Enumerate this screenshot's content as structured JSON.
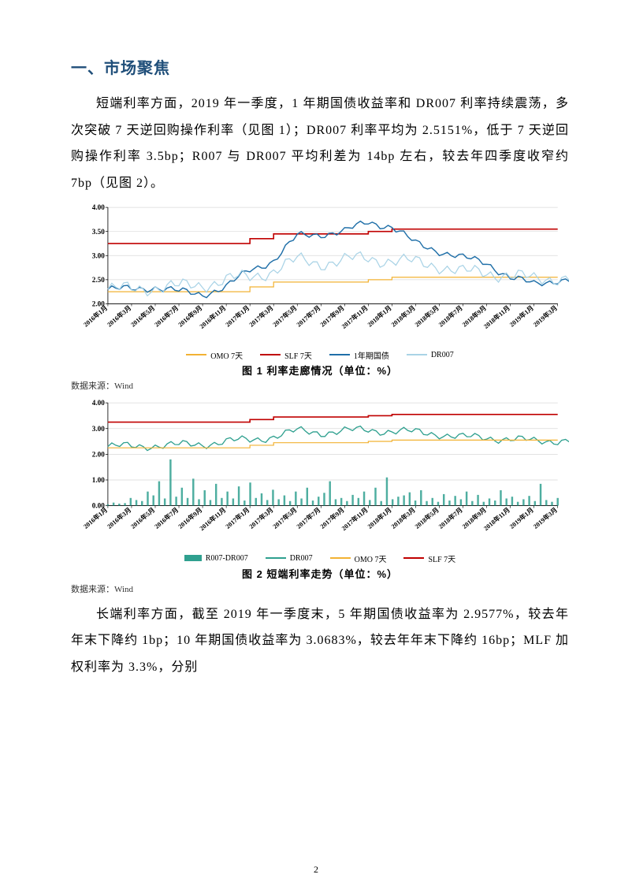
{
  "heading": "一、市场聚焦",
  "para1": "短端利率方面，2019 年一季度，1 年期国债收益率和 DR007 利率持续震荡，多次突破 7 天逆回购操作利率（见图 1）；DR007 利率平均为 2.5151%，低于 7 天逆回购操作利率 3.5bp；R007 与 DR007 平均利差为 14bp 左右，较去年四季度收窄约 7bp（见图 2）。",
  "para2": "长端利率方面，截至 2019 年一季度末，5 年期国债收益率为 2.9577%，较去年年末下降约 1bp；10 年期国债收益率为 3.0683%，较去年年末下降约 16bp；MLF 加权利率为 3.3%，分别",
  "source_label": "数据来源：Wind",
  "page_number": "2",
  "chart1": {
    "type": "line",
    "caption": "图 1 利率走廊情况（单位：%）",
    "ylim": [
      2.0,
      4.0
    ],
    "ytick_step": 0.5,
    "ytick_labels": [
      "2.00",
      "2.50",
      "3.00",
      "3.50",
      "4.00"
    ],
    "tick_fontsize": 9,
    "tick_color": "#000000",
    "background_color": "#ffffff",
    "grid_color": "#d9d9d9",
    "x_labels": [
      "2016年1月",
      "2016年3月",
      "2016年5月",
      "2016年7月",
      "2016年9月",
      "2016年11月",
      "2017年1月",
      "2017年3月",
      "2017年5月",
      "2017年7月",
      "2017年9月",
      "2017年11月",
      "2018年1月",
      "2018年3月",
      "2018年5月",
      "2018年7月",
      "2018年9月",
      "2018年11月",
      "2019年1月",
      "2019年3月"
    ],
    "series": [
      {
        "name": "OMO 7天",
        "color": "#f2b233",
        "width": 1.2,
        "values": [
          2.25,
          2.25,
          2.25,
          2.25,
          2.25,
          2.25,
          2.35,
          2.45,
          2.45,
          2.45,
          2.45,
          2.5,
          2.55,
          2.55,
          2.55,
          2.55,
          2.55,
          2.55,
          2.55,
          2.55
        ]
      },
      {
        "name": "SLF 7天",
        "color": "#c00000",
        "width": 1.6,
        "values": [
          3.25,
          3.25,
          3.25,
          3.25,
          3.25,
          3.25,
          3.35,
          3.45,
          3.45,
          3.45,
          3.45,
          3.5,
          3.55,
          3.55,
          3.55,
          3.55,
          3.55,
          3.55,
          3.55,
          3.55
        ]
      },
      {
        "name": "1年期国债",
        "color": "#1f6fa8",
        "width": 1.4,
        "values": [
          2.3,
          2.3,
          2.35,
          2.25,
          2.2,
          2.35,
          2.7,
          2.9,
          3.4,
          3.45,
          3.5,
          3.7,
          3.6,
          3.25,
          3.1,
          2.95,
          2.85,
          2.55,
          2.4,
          2.5
        ]
      },
      {
        "name": "DR007",
        "color": "#a9d3e6",
        "width": 1.2,
        "values": [
          2.3,
          2.3,
          2.35,
          2.35,
          2.4,
          2.5,
          2.55,
          2.7,
          2.9,
          2.85,
          2.9,
          2.95,
          2.9,
          2.85,
          2.8,
          2.65,
          2.65,
          2.6,
          2.5,
          2.55
        ]
      }
    ]
  },
  "chart2": {
    "type": "combo",
    "caption": "图 2 短端利率走势（单位：%）",
    "ylim": [
      0.0,
      4.0
    ],
    "ytick_step": 1.0,
    "ytick_labels": [
      "0.00",
      "1.00",
      "2.00",
      "3.00",
      "4.00"
    ],
    "tick_fontsize": 9,
    "tick_color": "#000000",
    "background_color": "#ffffff",
    "grid_color": "#d9d9d9",
    "x_labels": [
      "2016年1月",
      "2016年3月",
      "2016年5月",
      "2016年7月",
      "2016年9月",
      "2016年11月",
      "2017年1月",
      "2017年3月",
      "2017年5月",
      "2017年7月",
      "2017年9月",
      "2017年11月",
      "2018年1月",
      "2018年3月",
      "2018年5月",
      "2018年7月",
      "2018年9月",
      "2018年11月",
      "2019年1月",
      "2019年3月"
    ],
    "bar_series": {
      "name": "R007-DR007",
      "color": "#2fa08f",
      "samples": [
        0.05,
        0.12,
        0.08,
        0.1,
        0.3,
        0.22,
        0.18,
        0.55,
        0.4,
        0.95,
        0.28,
        1.8,
        0.35,
        0.7,
        0.3,
        1.05,
        0.25,
        0.6,
        0.22,
        0.85,
        0.3,
        0.55,
        0.28,
        0.75,
        0.2,
        0.9,
        0.3,
        0.48,
        0.22,
        0.62,
        0.25,
        0.4,
        0.18,
        0.55,
        0.28,
        0.7,
        0.2,
        0.35,
        0.5,
        0.95,
        0.25,
        0.3,
        0.18,
        0.42,
        0.3,
        0.55,
        0.22,
        0.7,
        0.18,
        1.1,
        0.25,
        0.35,
        0.4,
        0.52,
        0.2,
        0.6,
        0.18,
        0.3,
        0.15,
        0.45,
        0.2,
        0.38,
        0.25,
        0.55,
        0.18,
        0.42,
        0.15,
        0.28,
        0.2,
        0.6,
        0.28,
        0.35,
        0.15,
        0.25,
        0.38,
        0.18,
        0.85,
        0.22,
        0.15,
        0.3
      ]
    },
    "line_series": [
      {
        "name": "DR007",
        "color": "#2fa08f",
        "width": 1.3,
        "values": [
          2.3,
          2.3,
          2.35,
          2.35,
          2.4,
          2.5,
          2.55,
          2.7,
          2.9,
          2.85,
          2.9,
          2.95,
          2.9,
          2.85,
          2.8,
          2.65,
          2.65,
          2.6,
          2.5,
          2.55
        ]
      },
      {
        "name": "OMO 7天",
        "color": "#f2b233",
        "width": 1.2,
        "values": [
          2.25,
          2.25,
          2.25,
          2.25,
          2.25,
          2.25,
          2.35,
          2.45,
          2.45,
          2.45,
          2.45,
          2.5,
          2.55,
          2.55,
          2.55,
          2.55,
          2.55,
          2.55,
          2.55,
          2.55
        ]
      },
      {
        "name": "SLF 7天",
        "color": "#c00000",
        "width": 1.6,
        "values": [
          3.25,
          3.25,
          3.25,
          3.25,
          3.25,
          3.25,
          3.35,
          3.45,
          3.45,
          3.45,
          3.45,
          3.5,
          3.55,
          3.55,
          3.55,
          3.55,
          3.55,
          3.55,
          3.55,
          3.55
        ]
      }
    ]
  }
}
